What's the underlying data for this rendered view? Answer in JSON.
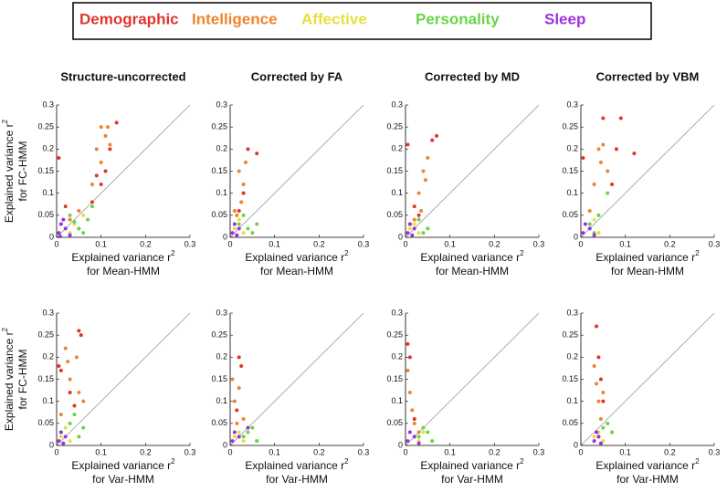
{
  "chart_data": [
    {
      "type": "scatter",
      "title": "Structure-uncorrected",
      "xlabel": {
        "main": "Explained variance r",
        "sup": "2",
        "line2": "for Mean-HMM"
      },
      "ylabel": {
        "main": "Explained variance r",
        "sup": "2",
        "line2": "for FC-HMM"
      },
      "xlim": [
        0,
        0.3
      ],
      "ylim": [
        0,
        0.3
      ],
      "xticks": [
        0,
        0.1,
        0.2,
        0.3
      ],
      "yticks": [
        0,
        0.05,
        0.1,
        0.15,
        0.2,
        0.25,
        0.3
      ],
      "series": [
        {
          "name": "Demographic",
          "color": "#e0352b",
          "x": [
            0.005,
            0.02,
            0.09,
            0.11,
            0.12,
            0.135,
            0.08,
            0.1
          ],
          "y": [
            0.18,
            0.07,
            0.14,
            0.15,
            0.2,
            0.26,
            0.08,
            0.12
          ]
        },
        {
          "name": "Intelligence",
          "color": "#f0842c",
          "x": [
            0.09,
            0.1,
            0.11,
            0.12,
            0.08,
            0.05,
            0.03,
            0.1,
            0.115
          ],
          "y": [
            0.2,
            0.25,
            0.23,
            0.21,
            0.12,
            0.06,
            0.04,
            0.17,
            0.25
          ]
        },
        {
          "name": "Affective",
          "color": "#e6e03c",
          "x": [
            0.02,
            0.04,
            0.06,
            0.03,
            0.05
          ],
          "y": [
            0.02,
            0.03,
            0.05,
            0.01,
            0.02
          ]
        },
        {
          "name": "Personality",
          "color": "#68d448",
          "x": [
            0.01,
            0.03,
            0.05,
            0.07,
            0.08,
            0.06,
            0.04
          ],
          "y": [
            0.03,
            0.05,
            0.02,
            0.04,
            0.07,
            0.01,
            0.035
          ]
        },
        {
          "name": "Sleep",
          "color": "#a02ee0",
          "x": [
            0.005,
            0.01,
            0.02,
            0.015,
            0.03,
            0.008
          ],
          "y": [
            0.01,
            0.03,
            0.02,
            0.04,
            0.005,
            0.002
          ]
        }
      ]
    },
    {
      "type": "scatter",
      "title": "Corrected by FA",
      "xlabel": {
        "main": "Explained variance r",
        "sup": "2",
        "line2": "for Mean-HMM"
      },
      "xlim": [
        0,
        0.3
      ],
      "ylim": [
        0,
        0.3
      ],
      "xticks": [
        0,
        0.1,
        0.2,
        0.3
      ],
      "yticks": [
        0,
        0.05,
        0.1,
        0.15,
        0.2,
        0.25,
        0.3
      ],
      "series": [
        {
          "name": "Demographic",
          "color": "#e0352b",
          "x": [
            0.04,
            0.06,
            0.02,
            0.03
          ],
          "y": [
            0.2,
            0.19,
            0.06,
            0.1
          ]
        },
        {
          "name": "Intelligence",
          "color": "#f0842c",
          "x": [
            0.02,
            0.03,
            0.025,
            0.015,
            0.035,
            0.01
          ],
          "y": [
            0.15,
            0.12,
            0.08,
            0.05,
            0.17,
            0.06
          ]
        },
        {
          "name": "Affective",
          "color": "#e6e03c",
          "x": [
            0.01,
            0.02,
            0.03
          ],
          "y": [
            0.02,
            0.04,
            0.01
          ]
        },
        {
          "name": "Personality",
          "color": "#68d448",
          "x": [
            0.02,
            0.04,
            0.05,
            0.03,
            0.06
          ],
          "y": [
            0.03,
            0.02,
            0.01,
            0.05,
            0.03
          ]
        },
        {
          "name": "Sleep",
          "color": "#a02ee0",
          "x": [
            0.005,
            0.01,
            0.02,
            0.015
          ],
          "y": [
            0.01,
            0.03,
            0.02,
            0.005
          ]
        }
      ]
    },
    {
      "type": "scatter",
      "title": "Corrected by MD",
      "xlabel": {
        "main": "Explained variance r",
        "sup": "2",
        "line2": "for Mean-HMM"
      },
      "xlim": [
        0,
        0.3
      ],
      "ylim": [
        0,
        0.3
      ],
      "xticks": [
        0,
        0.1,
        0.2,
        0.3
      ],
      "yticks": [
        0,
        0.05,
        0.1,
        0.15,
        0.2,
        0.25,
        0.3
      ],
      "series": [
        {
          "name": "Demographic",
          "color": "#e0352b",
          "x": [
            0.005,
            0.07,
            0.06,
            0.02,
            0.03
          ],
          "y": [
            0.21,
            0.23,
            0.22,
            0.07,
            0.05
          ]
        },
        {
          "name": "Intelligence",
          "color": "#f0842c",
          "x": [
            0.03,
            0.04,
            0.05,
            0.035,
            0.02,
            0.045
          ],
          "y": [
            0.1,
            0.15,
            0.18,
            0.06,
            0.04,
            0.13
          ]
        },
        {
          "name": "Affective",
          "color": "#e6e03c",
          "x": [
            0.01,
            0.02,
            0.03
          ],
          "y": [
            0.02,
            0.03,
            0.01
          ]
        },
        {
          "name": "Personality",
          "color": "#68d448",
          "x": [
            0.01,
            0.03,
            0.05,
            0.04
          ],
          "y": [
            0.03,
            0.04,
            0.02,
            0.01
          ]
        },
        {
          "name": "Sleep",
          "color": "#a02ee0",
          "x": [
            0.005,
            0.01,
            0.02,
            0.015
          ],
          "y": [
            0.01,
            0.03,
            0.02,
            0.005
          ]
        }
      ]
    },
    {
      "type": "scatter",
      "title": "Corrected by VBM",
      "xlabel": {
        "main": "Explained variance r",
        "sup": "2",
        "line2": "for Mean-HMM"
      },
      "xlim": [
        0,
        0.3
      ],
      "ylim": [
        0,
        0.3
      ],
      "xticks": [
        0,
        0.1,
        0.2,
        0.3
      ],
      "yticks": [
        0,
        0.05,
        0.1,
        0.15,
        0.2,
        0.25,
        0.3
      ],
      "series": [
        {
          "name": "Demographic",
          "color": "#e0352b",
          "x": [
            0.005,
            0.05,
            0.09,
            0.12,
            0.07,
            0.08
          ],
          "y": [
            0.18,
            0.27,
            0.27,
            0.19,
            0.12,
            0.2
          ]
        },
        {
          "name": "Intelligence",
          "color": "#f0842c",
          "x": [
            0.04,
            0.05,
            0.03,
            0.06,
            0.02,
            0.045
          ],
          "y": [
            0.2,
            0.21,
            0.12,
            0.15,
            0.06,
            0.17
          ]
        },
        {
          "name": "Affective",
          "color": "#e6e03c",
          "x": [
            0.02,
            0.03,
            0.04
          ],
          "y": [
            0.02,
            0.04,
            0.01
          ]
        },
        {
          "name": "Personality",
          "color": "#68d448",
          "x": [
            0.02,
            0.04,
            0.06,
            0.03
          ],
          "y": [
            0.03,
            0.05,
            0.1,
            0.01
          ]
        },
        {
          "name": "Sleep",
          "color": "#a02ee0",
          "x": [
            0.005,
            0.01,
            0.02,
            0.03
          ],
          "y": [
            0.01,
            0.03,
            0.02,
            0.005
          ]
        }
      ]
    },
    {
      "type": "scatter",
      "xlabel": {
        "main": "Explained variance r",
        "sup": "2",
        "line2": "for Var-HMM"
      },
      "ylabel": {
        "main": "Explained variance r",
        "sup": "2",
        "line2": "for FC-HMM"
      },
      "xlim": [
        0,
        0.3
      ],
      "ylim": [
        0,
        0.3
      ],
      "xticks": [
        0,
        0.1,
        0.2,
        0.3
      ],
      "yticks": [
        0,
        0.05,
        0.1,
        0.15,
        0.2,
        0.25,
        0.3
      ],
      "series": [
        {
          "name": "Demographic",
          "color": "#e0352b",
          "x": [
            0.005,
            0.01,
            0.05,
            0.055,
            0.03,
            0.04
          ],
          "y": [
            0.18,
            0.17,
            0.26,
            0.25,
            0.12,
            0.09
          ]
        },
        {
          "name": "Intelligence",
          "color": "#f0842c",
          "x": [
            0.02,
            0.025,
            0.03,
            0.045,
            0.05,
            0.06,
            0.01
          ],
          "y": [
            0.22,
            0.19,
            0.15,
            0.2,
            0.12,
            0.1,
            0.07
          ]
        },
        {
          "name": "Affective",
          "color": "#e6e03c",
          "x": [
            0.01,
            0.02,
            0.03
          ],
          "y": [
            0.02,
            0.04,
            0.01
          ]
        },
        {
          "name": "Personality",
          "color": "#68d448",
          "x": [
            0.01,
            0.03,
            0.05,
            0.06,
            0.04
          ],
          "y": [
            0.03,
            0.05,
            0.02,
            0.04,
            0.07
          ]
        },
        {
          "name": "Sleep",
          "color": "#a02ee0",
          "x": [
            0.005,
            0.01,
            0.02,
            0.015
          ],
          "y": [
            0.01,
            0.03,
            0.02,
            0.005
          ]
        }
      ]
    },
    {
      "type": "scatter",
      "xlabel": {
        "main": "Explained variance r",
        "sup": "2",
        "line2": "for Var-HMM"
      },
      "xlim": [
        0,
        0.3
      ],
      "ylim": [
        0,
        0.3
      ],
      "xticks": [
        0,
        0.1,
        0.2,
        0.3
      ],
      "yticks": [
        0,
        0.05,
        0.1,
        0.15,
        0.2,
        0.25,
        0.3
      ],
      "series": [
        {
          "name": "Demographic",
          "color": "#e0352b",
          "x": [
            0.02,
            0.025,
            0.015
          ],
          "y": [
            0.2,
            0.18,
            0.08
          ]
        },
        {
          "name": "Intelligence",
          "color": "#f0842c",
          "x": [
            0.005,
            0.01,
            0.02,
            0.03,
            0.015
          ],
          "y": [
            0.15,
            0.1,
            0.13,
            0.06,
            0.05
          ]
        },
        {
          "name": "Affective",
          "color": "#e6e03c",
          "x": [
            0.01,
            0.02,
            0.03
          ],
          "y": [
            0.02,
            0.03,
            0.01
          ]
        },
        {
          "name": "Personality",
          "color": "#68d448",
          "x": [
            0.03,
            0.05,
            0.06,
            0.04
          ],
          "y": [
            0.02,
            0.04,
            0.01,
            0.03
          ]
        },
        {
          "name": "Sleep",
          "color": "#a02ee0",
          "x": [
            0.005,
            0.01,
            0.02,
            0.04
          ],
          "y": [
            0.01,
            0.03,
            0.02,
            0.04
          ]
        }
      ]
    },
    {
      "type": "scatter",
      "xlabel": {
        "main": "Explained variance r",
        "sup": "2",
        "line2": "for Var-HMM"
      },
      "xlim": [
        0,
        0.3
      ],
      "ylim": [
        0,
        0.3
      ],
      "xticks": [
        0,
        0.1,
        0.2,
        0.3
      ],
      "yticks": [
        0,
        0.05,
        0.1,
        0.15,
        0.2,
        0.25,
        0.3
      ],
      "series": [
        {
          "name": "Demographic",
          "color": "#e0352b",
          "x": [
            0.005,
            0.01,
            0.02
          ],
          "y": [
            0.23,
            0.2,
            0.06
          ]
        },
        {
          "name": "Intelligence",
          "color": "#f0842c",
          "x": [
            0.005,
            0.01,
            0.015,
            0.02,
            0.03
          ],
          "y": [
            0.17,
            0.12,
            0.08,
            0.05,
            0.03
          ]
        },
        {
          "name": "Affective",
          "color": "#e6e03c",
          "x": [
            0.02,
            0.03,
            0.04
          ],
          "y": [
            0.02,
            0.01,
            0.03
          ]
        },
        {
          "name": "Personality",
          "color": "#68d448",
          "x": [
            0.03,
            0.05,
            0.06,
            0.04
          ],
          "y": [
            0.02,
            0.03,
            0.01,
            0.04
          ]
        },
        {
          "name": "Sleep",
          "color": "#a02ee0",
          "x": [
            0.005,
            0.01,
            0.02,
            0.03
          ],
          "y": [
            0.01,
            0.03,
            0.02,
            0.005
          ]
        }
      ]
    },
    {
      "type": "scatter",
      "xlabel": {
        "main": "Explained variance r",
        "sup": "2",
        "line2": "for Var-HMM"
      },
      "xlim": [
        0,
        0.3
      ],
      "ylim": [
        0,
        0.3
      ],
      "xticks": [
        0,
        0.1,
        0.2,
        0.3
      ],
      "yticks": [
        0,
        0.05,
        0.1,
        0.15,
        0.2,
        0.25,
        0.3
      ],
      "series": [
        {
          "name": "Demographic",
          "color": "#e0352b",
          "x": [
            0.035,
            0.04,
            0.045,
            0.05
          ],
          "y": [
            0.27,
            0.2,
            0.15,
            0.1
          ]
        },
        {
          "name": "Intelligence",
          "color": "#f0842c",
          "x": [
            0.03,
            0.035,
            0.04,
            0.05,
            0.045
          ],
          "y": [
            0.18,
            0.14,
            0.1,
            0.12,
            0.06
          ]
        },
        {
          "name": "Affective",
          "color": "#e6e03c",
          "x": [
            0.03,
            0.04,
            0.05
          ],
          "y": [
            0.02,
            0.03,
            0.01
          ]
        },
        {
          "name": "Personality",
          "color": "#68d448",
          "x": [
            0.04,
            0.06,
            0.07,
            0.05
          ],
          "y": [
            0.02,
            0.05,
            0.03,
            0.04
          ]
        },
        {
          "name": "Sleep",
          "color": "#a02ee0",
          "x": [
            0.03,
            0.035,
            0.04,
            0.045
          ],
          "y": [
            0.01,
            0.03,
            0.02,
            0.005
          ]
        }
      ]
    }
  ]
}
